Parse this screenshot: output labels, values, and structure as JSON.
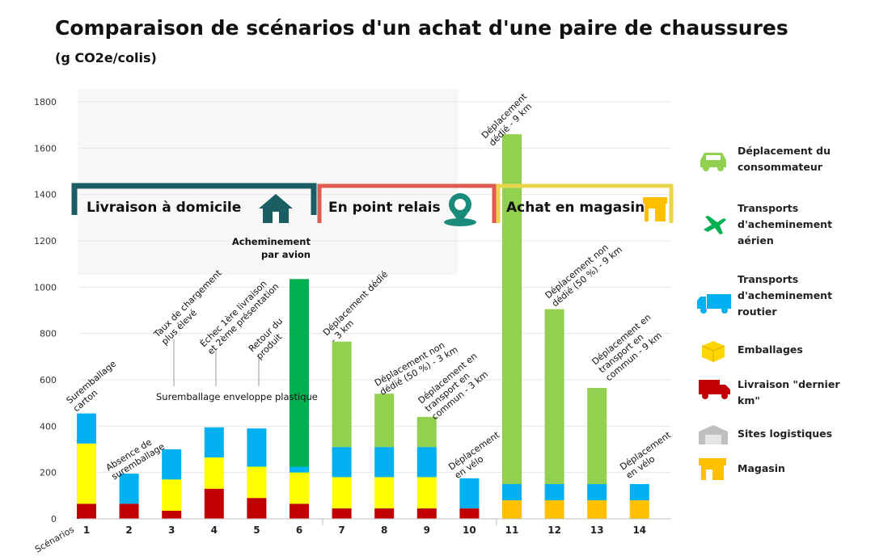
{
  "title": "Comparaison de scénarios d'un achat d'une paire de chaussures",
  "subtitle": "(g CO2e/colis)",
  "colors": {
    "deplacement": "#92d050",
    "aerien": "#00b050",
    "routier": "#00b0f0",
    "emballages": "#ffff00",
    "dernier_km": "#c00000",
    "sites": "#bfbfbf",
    "magasin": "#ffc000"
  },
  "legend": [
    {
      "key": "deplacement",
      "label": "Déplacement du consommateur",
      "icon": "car-icon"
    },
    {
      "key": "aerien",
      "label": "Transports d'acheminement aérien",
      "icon": "plane-icon"
    },
    {
      "key": "routier",
      "label": "Transports d'acheminement routier",
      "icon": "truck-icon"
    },
    {
      "key": "emballages",
      "label": "Emballages",
      "icon": "package-icon"
    },
    {
      "key": "dernier_km",
      "label": "Livraison \"dernier km\"",
      "icon": "delivery-truck-icon"
    },
    {
      "key": "sites",
      "label": "Sites logistiques",
      "icon": "warehouse-icon"
    },
    {
      "key": "magasin",
      "label": "Magasin",
      "icon": "store-icon"
    }
  ],
  "groups": [
    {
      "label": "Livraison à domicile",
      "color": "#1a5e63",
      "icon": "house-icon"
    },
    {
      "label": "En point relais",
      "color": "#e05a4e",
      "icon": "map-pin-icon"
    },
    {
      "label": "Achat en magasin",
      "color": "#e8d44d",
      "icon": "store-icon"
    }
  ],
  "x_axis_label": "Scénarios",
  "annotations": {
    "ann1": "Suremballage carton",
    "ann2": "Absence de suremballage",
    "ann3": "Taux de chargement plus élevé",
    "ann4": "Échec 1ère livraison et 2ème présentation",
    "ann5": "Retour du produit",
    "ann_common": "Suremballage enveloppe plastique",
    "ann6": "Acheminement par avion",
    "ann7": "Déplacement dédié - 3 km",
    "ann8": "Déplacement non dédié (50 %) - 3 km",
    "ann9": "Déplacement en transport en commun - 3 km",
    "ann10": "Déplacement en vélo",
    "ann11": "Déplacement dédié - 9 km",
    "ann12": "Déplacement non dédié (50 %) - 9 km",
    "ann13": "Déplacement en transport en commun - 9 km",
    "ann14": "Déplacement en vélo"
  },
  "chart_data": {
    "type": "bar",
    "stacked": true,
    "title": "Comparaison de scénarios d'un achat d'une paire de chaussures",
    "ylabel": "g CO2e/colis",
    "xlabel": "Scénarios",
    "ylim": [
      0,
      1800
    ],
    "yticks": [
      0,
      200,
      400,
      600,
      800,
      1000,
      1200,
      1400,
      1600,
      1800
    ],
    "categories": [
      "1",
      "2",
      "3",
      "4",
      "5",
      "6",
      "7",
      "8",
      "9",
      "10",
      "11",
      "12",
      "13",
      "14"
    ],
    "series": [
      {
        "name": "Livraison \"dernier km\"",
        "key": "dernier_km",
        "values": [
          65,
          65,
          35,
          130,
          90,
          65,
          45,
          45,
          45,
          45,
          0,
          0,
          0,
          0
        ]
      },
      {
        "name": "Magasin",
        "key": "magasin",
        "values": [
          0,
          0,
          0,
          0,
          0,
          0,
          0,
          0,
          0,
          0,
          80,
          80,
          80,
          80
        ]
      },
      {
        "name": "Emballages",
        "key": "emballages",
        "values": [
          260,
          0,
          135,
          135,
          135,
          135,
          135,
          135,
          135,
          0,
          0,
          0,
          0,
          0
        ]
      },
      {
        "name": "Transports d'acheminement routier",
        "key": "routier",
        "values": [
          130,
          130,
          130,
          130,
          165,
          25,
          130,
          130,
          130,
          130,
          70,
          70,
          70,
          70
        ]
      },
      {
        "name": "Transports d'acheminement aérien",
        "key": "aerien",
        "values": [
          0,
          0,
          0,
          0,
          0,
          810,
          0,
          0,
          0,
          0,
          0,
          0,
          0,
          0
        ]
      },
      {
        "name": "Déplacement du consommateur",
        "key": "deplacement",
        "values": [
          0,
          0,
          0,
          0,
          0,
          0,
          455,
          230,
          130,
          0,
          1510,
          755,
          415,
          0
        ]
      }
    ]
  }
}
